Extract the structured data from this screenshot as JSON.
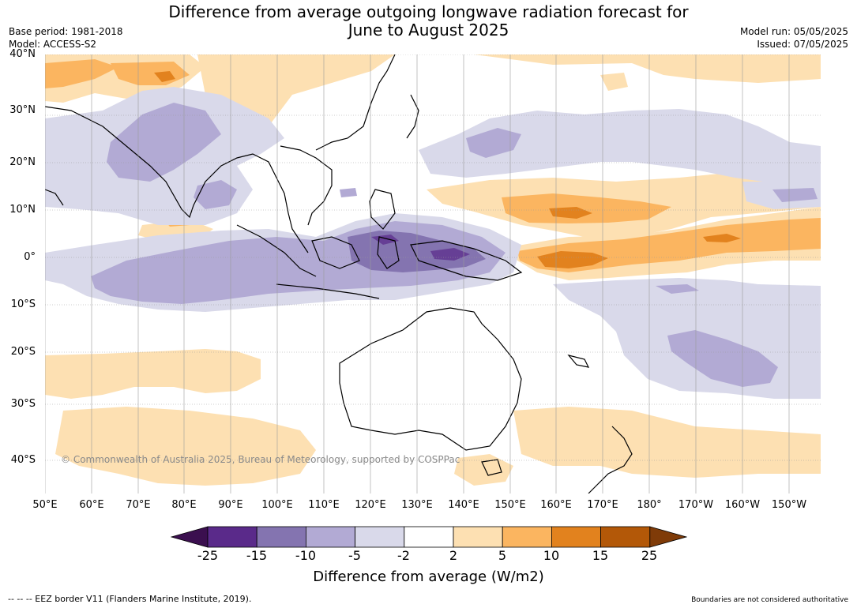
{
  "title_line1": "Difference from average outgoing longwave radiation forecast for",
  "title_line2": "June to August 2025",
  "base_period": "Base period: 1981-2018",
  "model": "Model: ACCESS-S2",
  "model_run": "Model run: 05/05/2025",
  "issued": "Issued: 07/05/2025",
  "copyright": "© Commonwealth of Australia 2025, Bureau of Meteorology, supported by COSPPac",
  "lat_labels": [
    "40°N",
    "30°N",
    "20°N",
    "10°N",
    "0°",
    "10°S",
    "20°S",
    "30°S",
    "40°S"
  ],
  "lon_labels": [
    "50°E",
    "60°E",
    "70°E",
    "80°E",
    "90°E",
    "100°E",
    "110°E",
    "120°E",
    "130°E",
    "140°E",
    "150°E",
    "160°E",
    "170°E",
    "180°",
    "170°W",
    "160°W",
    "150°W"
  ],
  "colorbar": {
    "title": "Difference from average (W/m2)",
    "labels": [
      "-25",
      "-15",
      "-10",
      "-5",
      "-2",
      "2",
      "5",
      "10",
      "15",
      "25"
    ],
    "colors": [
      "#3b0f4f",
      "#5a2a8a",
      "#8474b0",
      "#b2aad4",
      "#d9d9ea",
      "#ffffff",
      "#fde0b2",
      "#fbb560",
      "#e2821e",
      "#b35808",
      "#7f3b08"
    ]
  },
  "footer_left": "--  --  -- EEZ border V11 (Flanders Marine Institute, 2019).",
  "footer_right": "Boundaries are not considered authoritative",
  "anomaly_regions": [
    {
      "name": "india-bay-of-bengal-negative",
      "level": "-5"
    },
    {
      "name": "indian-ocean-equatorial-negative",
      "level": "-5"
    },
    {
      "name": "maritime-continent-negative",
      "level": "-10"
    },
    {
      "name": "central-pacific-positive",
      "level": "10"
    },
    {
      "name": "southwest-pacific-negative",
      "level": "-5"
    },
    {
      "name": "southern-indian-ocean-positive",
      "level": "2"
    },
    {
      "name": "tasman-positive",
      "level": "2"
    }
  ]
}
